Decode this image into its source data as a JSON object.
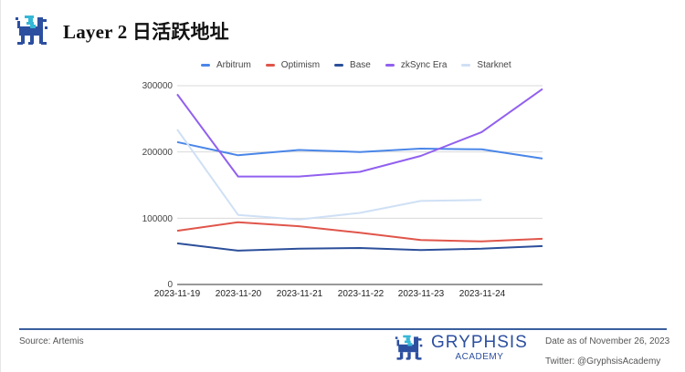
{
  "header": {
    "title": "Layer 2 日活跃地址"
  },
  "legend": [
    {
      "label": "Arbitrum",
      "color": "#4a86e8"
    },
    {
      "label": "Optimism",
      "color": "#e0554a"
    },
    {
      "label": "Base",
      "color": "#2c4f9a"
    },
    {
      "label": "zkSync Era",
      "color": "#9160f0"
    },
    {
      "label": "Starknet",
      "color": "#cfe0f5"
    }
  ],
  "axis": {
    "y_ticks": [
      "0",
      "100000",
      "200000",
      "300000"
    ],
    "x_ticks": [
      "2023-11-19",
      "2023-11-20",
      "2023-11-21",
      "2023-11-22",
      "2023-11-23",
      "2023-11-24"
    ]
  },
  "footer": {
    "source": "Source: Artemis",
    "brand_name": "GRYPHSIS",
    "brand_sub": "ACADEMY",
    "date": "Date as of November 26, 2023",
    "twitter": "Twitter: @GryphsisAcademy"
  },
  "chart_data": {
    "type": "line",
    "title": "Layer 2 日活跃地址",
    "xlabel": "",
    "ylabel": "",
    "x": [
      "2023-11-19",
      "2023-11-20",
      "2023-11-21",
      "2023-11-22",
      "2023-11-23",
      "2023-11-24",
      "2023-11-25"
    ],
    "x_tick_labels_shown": [
      "2023-11-19",
      "2023-11-20",
      "2023-11-21",
      "2023-11-22",
      "2023-11-23",
      "2023-11-24"
    ],
    "ylim": [
      0,
      300000
    ],
    "y_ticks": [
      0,
      100000,
      200000,
      300000
    ],
    "grid": true,
    "legend_position": "top",
    "series": [
      {
        "name": "Arbitrum",
        "color": "#4a86e8",
        "values": [
          215000,
          195000,
          203000,
          200000,
          205000,
          204000,
          190000
        ]
      },
      {
        "name": "Optimism",
        "color": "#e0554a",
        "values": [
          81000,
          94000,
          88000,
          78000,
          67000,
          65000,
          69000
        ]
      },
      {
        "name": "Base",
        "color": "#2c4f9a",
        "values": [
          62000,
          51000,
          54000,
          55000,
          52000,
          54000,
          58000
        ]
      },
      {
        "name": "zkSync Era",
        "color": "#9160f0",
        "values": [
          287000,
          163000,
          163000,
          170000,
          194000,
          230000,
          295000
        ]
      },
      {
        "name": "Starknet",
        "color": "#cfe0f5",
        "values": [
          234000,
          105000,
          98000,
          108000,
          126000,
          127500,
          null
        ]
      }
    ]
  }
}
